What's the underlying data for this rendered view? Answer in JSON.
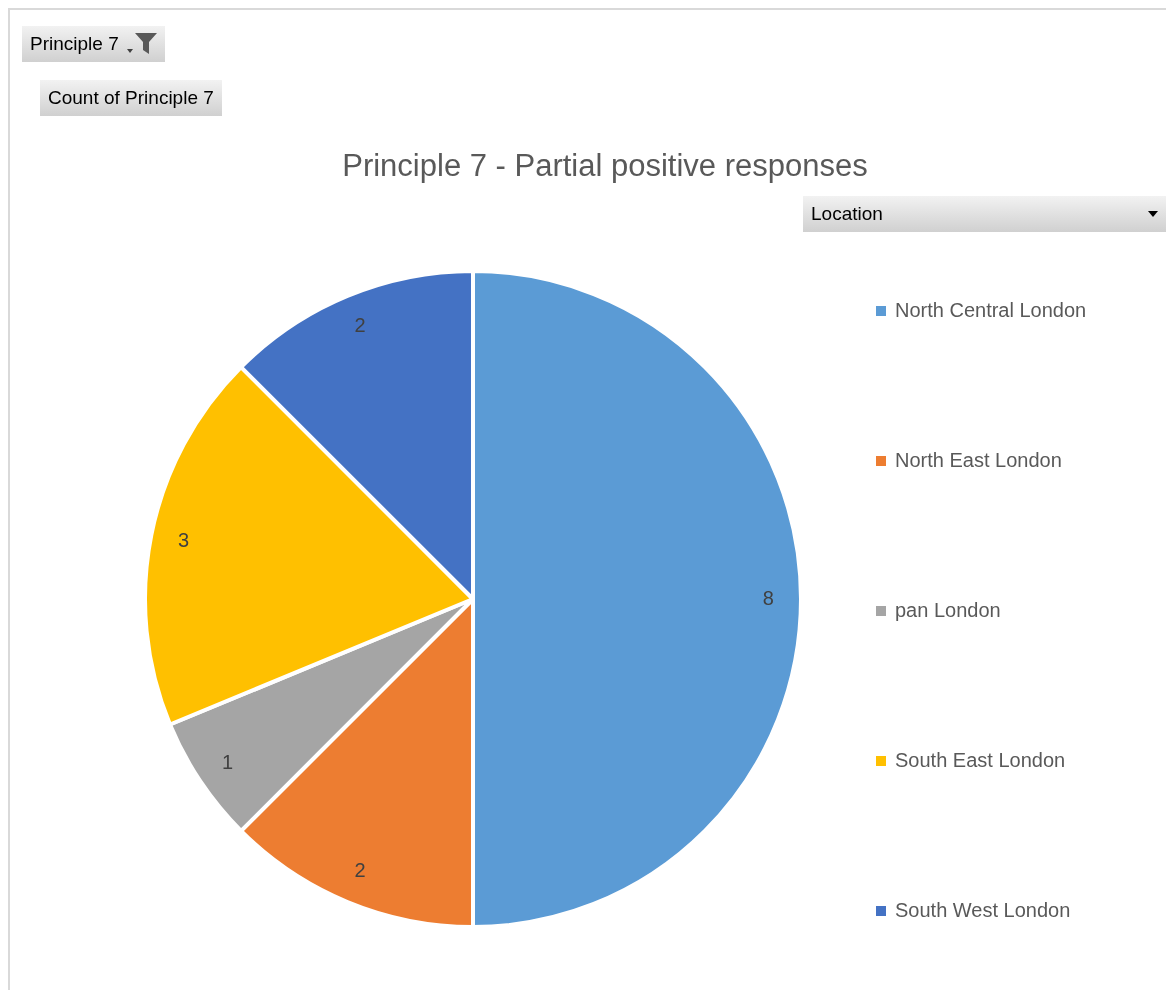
{
  "chart_data": {
    "type": "pie",
    "title": "Principle 7 - Partial positive responses",
    "legend_title": "Location",
    "annotations": [
      "Principle 7",
      "Count of Principle 7"
    ],
    "categories": [
      "North Central London",
      "North East London",
      "pan London",
      "South East London",
      "South West London"
    ],
    "values": [
      8,
      2,
      1,
      3,
      2
    ],
    "colors": [
      "#5b9bd5",
      "#ed7d31",
      "#a5a5a5",
      "#ffc000",
      "#4472c4"
    ],
    "data_labels": true,
    "legend": "right"
  }
}
